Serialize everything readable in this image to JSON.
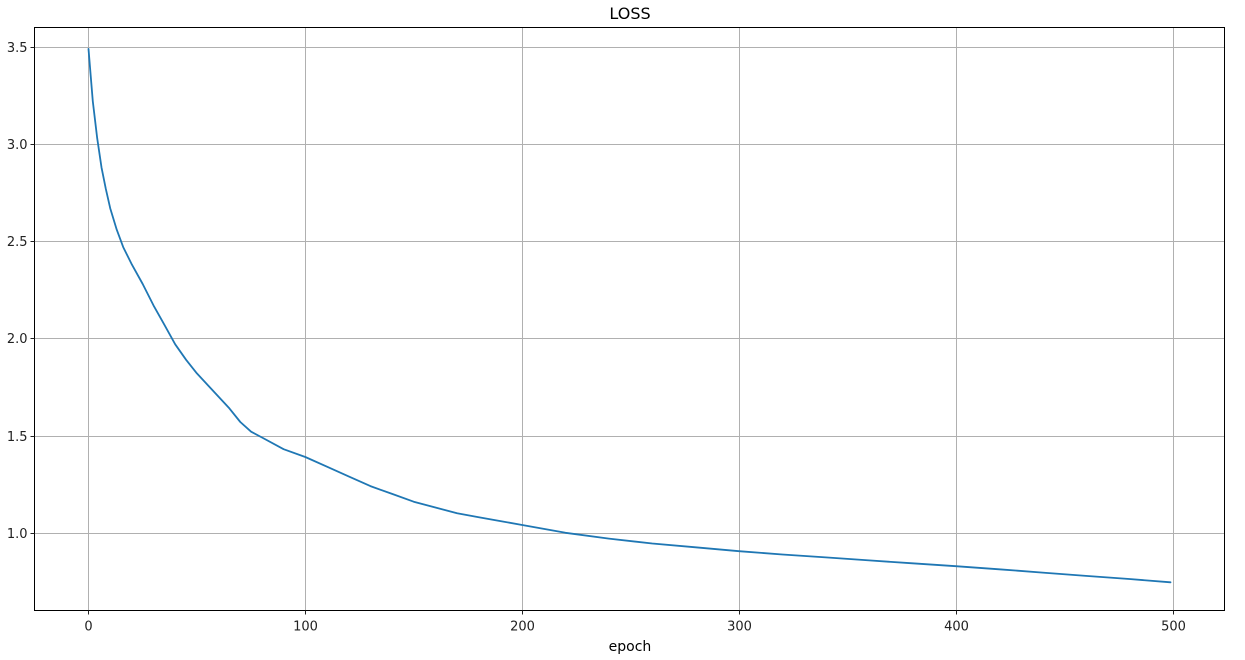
{
  "chart_data": {
    "type": "line",
    "title": "LOSS",
    "xlabel": "epoch",
    "ylabel": "",
    "xlim": [
      -24.9,
      523.9
    ],
    "ylim": [
      0.6,
      3.6
    ],
    "xticks": [
      0,
      100,
      200,
      300,
      400,
      500
    ],
    "yticks": [
      1.0,
      1.5,
      2.0,
      2.5,
      3.0,
      3.5
    ],
    "ytick_labels": [
      "1.0",
      "1.5",
      "2.0",
      "2.5",
      "3.0",
      "3.5"
    ],
    "grid": true,
    "line_color": "#1f77b4",
    "series": [
      {
        "x": [
          0,
          2,
          4,
          6,
          8,
          10,
          13,
          16,
          20,
          25,
          30,
          35,
          40,
          45,
          50,
          55,
          60,
          65,
          70,
          75,
          80,
          90,
          100,
          110,
          120,
          130,
          140,
          150,
          160,
          170,
          180,
          190,
          200,
          220,
          240,
          260,
          280,
          300,
          320,
          340,
          360,
          380,
          400,
          420,
          440,
          460,
          480,
          499
        ],
        "y": [
          3.49,
          3.22,
          3.03,
          2.88,
          2.77,
          2.67,
          2.56,
          2.47,
          2.38,
          2.28,
          2.17,
          2.07,
          1.97,
          1.89,
          1.82,
          1.76,
          1.7,
          1.64,
          1.57,
          1.52,
          1.49,
          1.43,
          1.39,
          1.34,
          1.29,
          1.24,
          1.2,
          1.16,
          1.13,
          1.1,
          1.08,
          1.06,
          1.04,
          1.0,
          0.97,
          0.945,
          0.925,
          0.905,
          0.888,
          0.873,
          0.858,
          0.843,
          0.828,
          0.812,
          0.795,
          0.778,
          0.762,
          0.745
        ]
      }
    ]
  }
}
